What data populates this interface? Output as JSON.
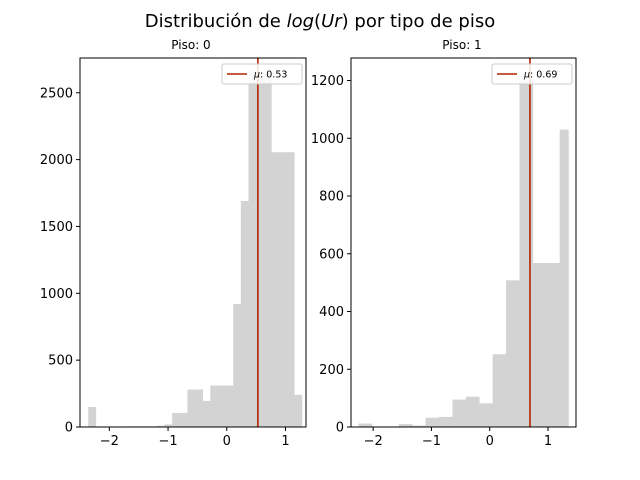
{
  "figure": {
    "title_prefix": "Distribución de ",
    "title_math": "log",
    "title_paren_open": "(",
    "title_math_var": "Ur",
    "title_paren_close": ")",
    "title_suffix": " por tipo de piso"
  },
  "chart_data": [
    {
      "type": "bar",
      "title": "Piso: 0",
      "bar_color": "#d3d3d3",
      "mean_line_color": "#b22200",
      "legend": {
        "symbol": "μ",
        "value_text": ": 0.53",
        "placement": "top-right"
      },
      "mean": 0.53,
      "xlim": [
        -2.5,
        1.35
      ],
      "ylim": [
        0,
        2760
      ],
      "xticks": [
        -2,
        -1,
        0,
        1
      ],
      "xtick_labels": [
        "−2",
        "−1",
        "0",
        "1"
      ],
      "yticks": [
        0,
        500,
        1000,
        1500,
        2000,
        2500
      ],
      "ytick_labels": [
        "0",
        "500",
        "1000",
        "1500",
        "2000",
        "2500"
      ],
      "bins": [
        {
          "x0": -2.36,
          "x1": -2.23,
          "value": 150
        },
        {
          "x0": -2.23,
          "x1": -2.1,
          "value": 0
        },
        {
          "x0": -2.1,
          "x1": -1.97,
          "value": 0
        },
        {
          "x0": -1.97,
          "x1": -1.84,
          "value": 0
        },
        {
          "x0": -1.84,
          "x1": -1.71,
          "value": 0
        },
        {
          "x0": -1.71,
          "x1": -1.58,
          "value": 5
        },
        {
          "x0": -1.58,
          "x1": -1.45,
          "value": 5
        },
        {
          "x0": -1.45,
          "x1": -1.32,
          "value": 5
        },
        {
          "x0": -1.32,
          "x1": -1.19,
          "value": 5
        },
        {
          "x0": -1.19,
          "x1": -1.06,
          "value": 10
        },
        {
          "x0": -1.06,
          "x1": -0.93,
          "value": 20
        },
        {
          "x0": -0.93,
          "x1": -0.8,
          "value": 105
        },
        {
          "x0": -0.8,
          "x1": -0.67,
          "value": 105
        },
        {
          "x0": -0.67,
          "x1": -0.54,
          "value": 280
        },
        {
          "x0": -0.54,
          "x1": -0.41,
          "value": 280
        },
        {
          "x0": -0.41,
          "x1": -0.28,
          "value": 195
        },
        {
          "x0": -0.28,
          "x1": -0.15,
          "value": 310
        },
        {
          "x0": -0.15,
          "x1": -0.02,
          "value": 310
        },
        {
          "x0": -0.02,
          "x1": 0.11,
          "value": 310
        },
        {
          "x0": 0.11,
          "x1": 0.24,
          "value": 920
        },
        {
          "x0": 0.24,
          "x1": 0.37,
          "value": 1690
        },
        {
          "x0": 0.37,
          "x1": 0.5,
          "value": 2660
        },
        {
          "x0": 0.5,
          "x1": 0.63,
          "value": 2660
        },
        {
          "x0": 0.63,
          "x1": 0.76,
          "value": 2660
        },
        {
          "x0": 0.76,
          "x1": 0.89,
          "value": 2055
        },
        {
          "x0": 0.89,
          "x1": 1.02,
          "value": 2055
        },
        {
          "x0": 1.02,
          "x1": 1.15,
          "value": 2055
        },
        {
          "x0": 1.15,
          "x1": 1.28,
          "value": 240
        }
      ]
    },
    {
      "type": "bar",
      "title": "Piso: 1",
      "bar_color": "#d3d3d3",
      "mean_line_color": "#b22200",
      "legend": {
        "symbol": "μ",
        "value_text": ": 0.69",
        "placement": "top-right"
      },
      "mean": 0.69,
      "xlim": [
        -2.38,
        1.48
      ],
      "ylim": [
        0,
        1278
      ],
      "xticks": [
        -2,
        -1,
        0,
        1
      ],
      "xtick_labels": [
        "−2",
        "−1",
        "0",
        "1"
      ],
      "yticks": [
        0,
        200,
        400,
        600,
        800,
        1000,
        1200
      ],
      "ytick_labels": [
        "0",
        "200",
        "400",
        "600",
        "800",
        "1000",
        "1200"
      ],
      "bins": [
        {
          "x0": -2.25,
          "x1": -2.02,
          "value": 12
        },
        {
          "x0": -2.02,
          "x1": -1.79,
          "value": 0
        },
        {
          "x0": -1.79,
          "x1": -1.56,
          "value": 0
        },
        {
          "x0": -1.56,
          "x1": -1.33,
          "value": 10
        },
        {
          "x0": -1.33,
          "x1": -1.1,
          "value": 5
        },
        {
          "x0": -1.1,
          "x1": -0.87,
          "value": 32
        },
        {
          "x0": -0.87,
          "x1": -0.64,
          "value": 35
        },
        {
          "x0": -0.64,
          "x1": -0.41,
          "value": 95
        },
        {
          "x0": -0.41,
          "x1": -0.18,
          "value": 105
        },
        {
          "x0": -0.18,
          "x1": 0.05,
          "value": 82
        },
        {
          "x0": 0.05,
          "x1": 0.28,
          "value": 252
        },
        {
          "x0": 0.28,
          "x1": 0.51,
          "value": 508
        },
        {
          "x0": 0.51,
          "x1": 0.74,
          "value": 1200
        },
        {
          "x0": 0.74,
          "x1": 0.97,
          "value": 568
        },
        {
          "x0": 0.97,
          "x1": 1.2,
          "value": 568
        },
        {
          "x0": 1.2,
          "x1": 1.35,
          "value": 1030
        }
      ]
    }
  ]
}
